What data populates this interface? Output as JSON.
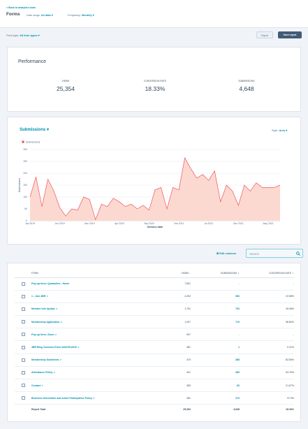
{
  "header": {
    "back_link": "< Back to analytics tools",
    "title": "Forms",
    "date_range_label": "Date range:",
    "date_range_value": "All data",
    "frequency_label": "Frequency:",
    "frequency_value": "Monthly"
  },
  "filters": {
    "form_type_label": "Form type:",
    "form_type_value": "All form types",
    "export_label": "Export",
    "save_label": "Save report"
  },
  "performance": {
    "title": "Performance",
    "kpis": [
      {
        "label": "VIEWS",
        "value": "25,354"
      },
      {
        "label": "CONVERSION RATE",
        "value": "18.33%"
      },
      {
        "label": "SUBMISSIONS",
        "value": "4,648"
      }
    ]
  },
  "chart_header": {
    "metric": "Submissions",
    "style_label": "Style:",
    "style_value": "Area"
  },
  "chart_data": {
    "type": "area",
    "title": "",
    "legend": [
      "Submissions"
    ],
    "legend_position": "top-left",
    "xlabel": "Session date",
    "ylabel": "Submissions",
    "ylim": [
      0,
      300
    ],
    "yticks": [
      0,
      50,
      100,
      150,
      200,
      250,
      300
    ],
    "xtick_labels": [
      "Jan 2019",
      "Jun 2019",
      "Nov 2019",
      "Apr 2020",
      "Sep 2020",
      "Feb 2021",
      "Jul 2021",
      "Dec 2021",
      "May 2022"
    ],
    "xtick_index": [
      0,
      5,
      10,
      15,
      20,
      25,
      30,
      35,
      40
    ],
    "grid": true,
    "color": "#f2545b",
    "fill": "#fcd9d0",
    "series": [
      {
        "name": "Submissions",
        "values": [
          100,
          185,
          60,
          175,
          125,
          55,
          20,
          50,
          45,
          100,
          90,
          5,
          70,
          60,
          95,
          80,
          60,
          70,
          50,
          65,
          45,
          130,
          140,
          50,
          140,
          130,
          265,
          220,
          180,
          195,
          170,
          210,
          80,
          150,
          125,
          65,
          150,
          125,
          160,
          140,
          140,
          140,
          150
        ]
      }
    ]
  },
  "table": {
    "edit_columns_label": "Edit columns",
    "search_placeholder": "Search",
    "headers": {
      "form": "FORM",
      "views": "VIEWS",
      "submissions": "SUBMISSIONS",
      "conversion": "CONVERSION RATE"
    },
    "rows": [
      {
        "name": "Pop-up form: Quarantine - Home",
        "views": "7,501",
        "submissions": "-",
        "conversion": "-",
        "ext": false
      },
      {
        "name": "1 - Join 4BR",
        "views": "4,252",
        "submissions": "960",
        "conversion": "22.58%",
        "ext": true
      },
      {
        "name": "Member Info Update",
        "views": "1,791",
        "submissions": "700",
        "conversion": "39.08%",
        "ext": true
      },
      {
        "name": "Membership Application",
        "views": "1,207",
        "submissions": "710",
        "conversion": "58.82%",
        "ext": true
      },
      {
        "name": "Pop-up form: Zoom",
        "views": "997",
        "submissions": "-",
        "conversion": "-",
        "ext": true
      },
      {
        "name": "4BR Blog Comment Form 34047612020",
        "views": "481",
        "submissions": "1",
        "conversion": "0.21%",
        "ext": true
      },
      {
        "name": "Membership Guidelines",
        "views": "470",
        "submissions": "388",
        "conversion": "82.55%",
        "ext": true
      },
      {
        "name": "Attendance Policy",
        "views": "401",
        "submissions": "380",
        "conversion": "94.76%",
        "ext": true
      },
      {
        "name": "Contact",
        "views": "383",
        "submissions": "83",
        "conversion": "21.67%",
        "ext": true
      },
      {
        "name": "Business Generation and Active Participation Policy",
        "views": "381",
        "submissions": "373",
        "conversion": "97.9%",
        "ext": true
      }
    ],
    "total": {
      "label": "Report Total",
      "views": "25,354",
      "submissions": "4,648",
      "conversion": "18.33%"
    }
  }
}
